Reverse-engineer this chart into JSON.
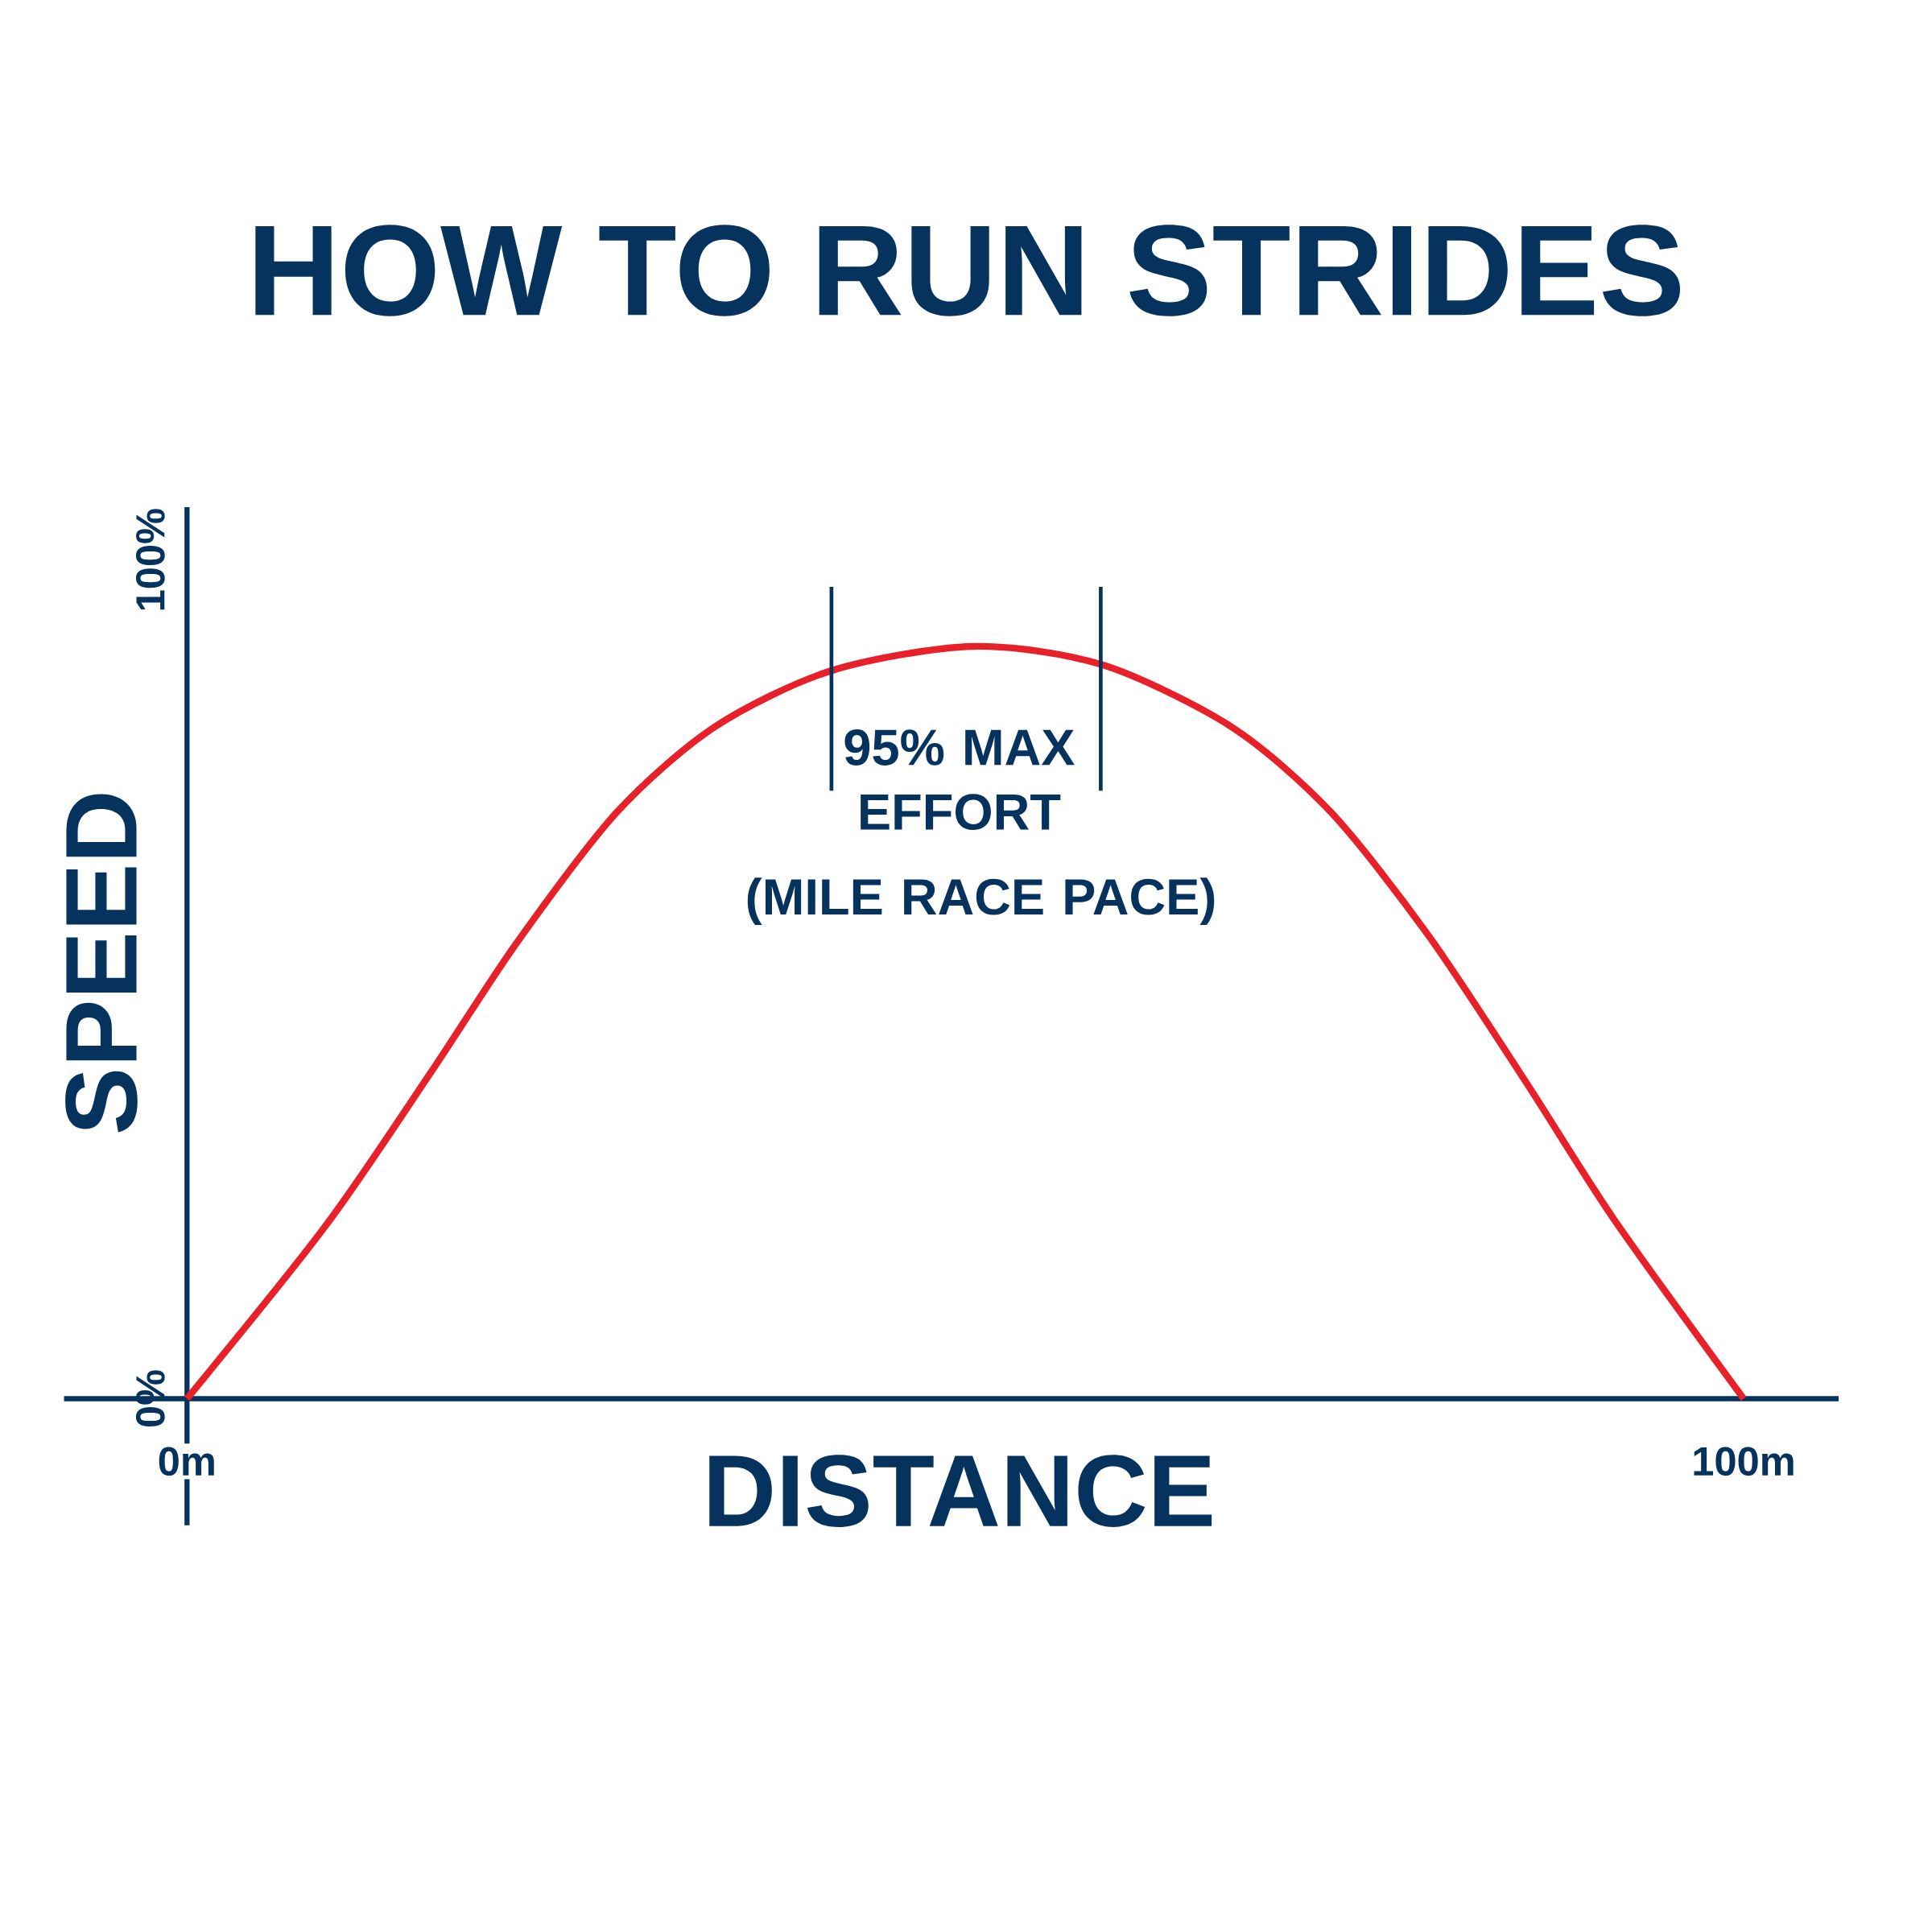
{
  "chart_data": {
    "type": "line",
    "title": "HOW TO RUN STRIDES",
    "xlabel": "DISTANCE",
    "ylabel": "SPEED",
    "x": [
      0,
      8.9,
      15.7,
      21.2,
      27.6,
      33.9,
      41.4,
      50.5,
      58.8,
      67.1,
      73.5,
      79.8,
      86.1,
      91.7,
      100
    ],
    "series": [
      {
        "color": "#e8202a",
        "values": [
          0,
          20.6,
          39.0,
          54.4,
          69.9,
          80.1,
          86.8,
          89.7,
          87.5,
          80.1,
          69.9,
          55.1,
          37.5,
          21.3,
          0
        ]
      }
    ],
    "xlim": [
      -7.9,
      106.1
    ],
    "ylim": [
      -15.1,
      106.3
    ],
    "xticks": [
      {
        "value": 0,
        "label": "0m"
      },
      {
        "value": 100,
        "label": "100m"
      }
    ],
    "yticks": [
      {
        "value": 0,
        "label": "0%"
      },
      {
        "value": 100,
        "label": "100%"
      }
    ],
    "ref_lines": [
      {
        "axis": "x",
        "value": 41.4,
        "color": "#06335e"
      },
      {
        "axis": "x",
        "value": 58.7,
        "color": "#06335e"
      }
    ],
    "annotations": [
      "95% MAX EFFORT",
      "(MILE RACE PACE)"
    ],
    "grid": false,
    "marker": "none",
    "line_style": "solid"
  }
}
